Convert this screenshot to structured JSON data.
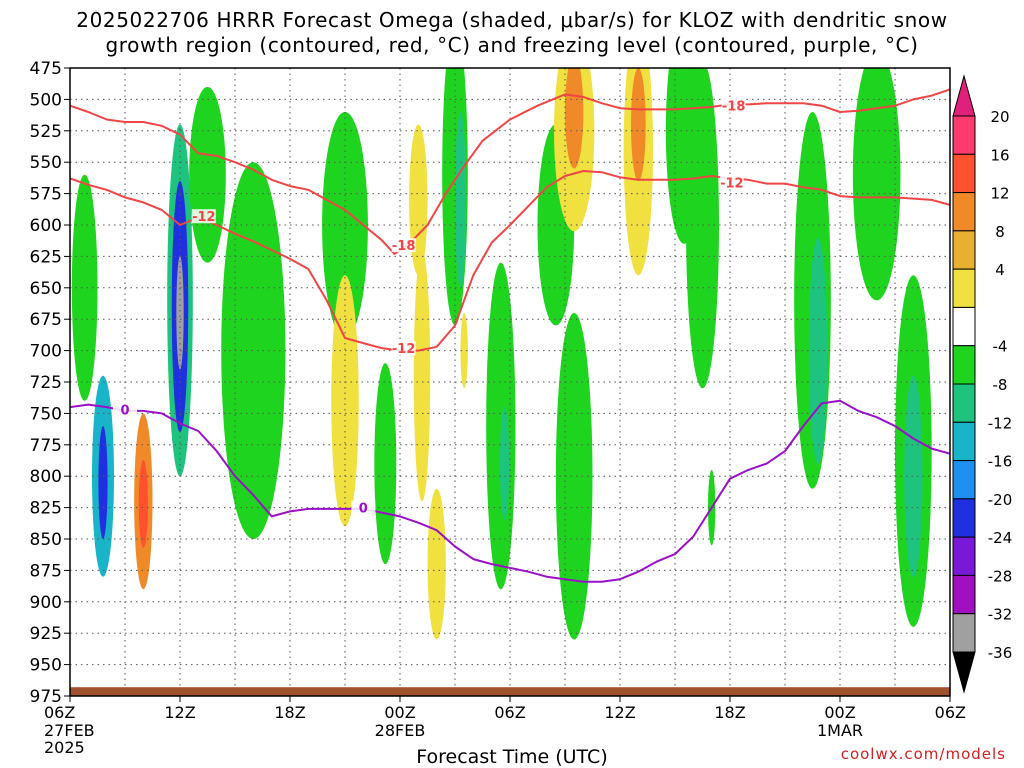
{
  "title_line1": "2025022706 HRRR Forecast Omega (shaded, μbar/s) for KLOZ with dendritic snow",
  "title_line2": "growth region (contoured, red, °C) and freezing level (contoured, purple, °C)",
  "credit": "coolwx.com/models",
  "colors": {
    "dgz_contour": "#f04545",
    "freezing_contour": "#9a10c8",
    "terrain": "#a0522d",
    "grid": "#555555"
  },
  "chart_data": {
    "type": "heatmap",
    "title": "2025022706 HRRR Forecast Omega (shaded, μbar/s) for KLOZ with dendritic snow growth region (contoured, red, °C) and freezing level (contoured, purple, °C)",
    "xlabel": "Forecast Time (UTC)",
    "ylabel": "",
    "grid": true,
    "x_range_hours": [
      0,
      48
    ],
    "y_range_mb": [
      475,
      975
    ],
    "y_ticks": [
      475,
      500,
      525,
      550,
      575,
      600,
      625,
      650,
      675,
      700,
      725,
      750,
      775,
      800,
      825,
      850,
      875,
      900,
      925,
      950,
      975
    ],
    "x_ticks": [
      {
        "hour": 0,
        "label": "06Z",
        "sub": [
          "27FEB",
          "2025"
        ]
      },
      {
        "hour": 6,
        "label": "12Z",
        "sub": []
      },
      {
        "hour": 12,
        "label": "18Z",
        "sub": []
      },
      {
        "hour": 18,
        "label": "00Z",
        "sub": [
          "28FEB"
        ]
      },
      {
        "hour": 24,
        "label": "06Z",
        "sub": []
      },
      {
        "hour": 30,
        "label": "12Z",
        "sub": []
      },
      {
        "hour": 36,
        "label": "18Z",
        "sub": []
      },
      {
        "hour": 42,
        "label": "00Z",
        "sub": [
          "1MAR"
        ]
      },
      {
        "hour": 48,
        "label": "06Z",
        "sub": []
      }
    ],
    "colorbar": {
      "labels": [
        20,
        16,
        12,
        8,
        4,
        -4,
        -8,
        -12,
        -16,
        -20,
        -24,
        -28,
        -32,
        -36
      ],
      "bins": [
        {
          "from": 16,
          "to": 20,
          "color": "#ff3a6e"
        },
        {
          "from": 12,
          "to": 16,
          "color": "#ff5030"
        },
        {
          "from": 8,
          "to": 12,
          "color": "#f08a28"
        },
        {
          "from": 4,
          "to": 8,
          "color": "#e8b030"
        },
        {
          "from": 4,
          "to": 4,
          "color": "#f0e040"
        },
        {
          "from": -4,
          "to": 4,
          "color": "#ffffff"
        },
        {
          "from": -8,
          "to": -4,
          "color": "#1ed41e"
        },
        {
          "from": -12,
          "to": -8,
          "color": "#1ec47e"
        },
        {
          "from": -16,
          "to": -12,
          "color": "#1ab4c8"
        },
        {
          "from": -20,
          "to": -16,
          "color": "#2090f0"
        },
        {
          "from": -24,
          "to": -20,
          "color": "#2030e0"
        },
        {
          "from": -28,
          "to": -24,
          "color": "#7a18d8"
        },
        {
          "from": -32,
          "to": -28,
          "color": "#a010c0"
        },
        {
          "from": -36,
          "to": -32,
          "color": "#a0a0a0"
        }
      ],
      "top_arrow_color": "#e0207a",
      "bottom_arrow_color": "#000000"
    },
    "series": [
      {
        "name": "-18",
        "kind": "dgz",
        "x": [
          0,
          1,
          2,
          3,
          4,
          5,
          6,
          7,
          8,
          9,
          10,
          11,
          12,
          13,
          14,
          15,
          16,
          17,
          17.7,
          18.5,
          19.5,
          20.5,
          21.5,
          22.5,
          24,
          25.5,
          27,
          28,
          29,
          30,
          31,
          32,
          33,
          34,
          35,
          36,
          37,
          38,
          39,
          40,
          41,
          42,
          43,
          44,
          45,
          46,
          47,
          48
        ],
        "y": [
          505,
          510,
          516,
          518,
          518,
          521,
          528,
          543,
          545,
          550,
          556,
          564,
          569,
          572,
          580,
          588,
          600,
          612,
          623,
          615,
          600,
          575,
          553,
          533,
          516,
          505,
          496,
          498,
          503,
          507,
          508,
          508,
          508,
          507,
          506,
          504,
          504,
          503,
          503,
          503,
          505,
          510,
          509,
          507,
          505,
          500,
          497,
          492
        ]
      },
      {
        "name": "-12",
        "kind": "dgz",
        "x": [
          0,
          1,
          2,
          3,
          4,
          5,
          6,
          7,
          8,
          9,
          10,
          11,
          12,
          13,
          14,
          15,
          16,
          17,
          18,
          19,
          20,
          21,
          22,
          23,
          24,
          25,
          26,
          27,
          28,
          29,
          30,
          31,
          32,
          33,
          34,
          35,
          36,
          37,
          38,
          39,
          40,
          41,
          42,
          43,
          44,
          45,
          46,
          47,
          48
        ],
        "y": [
          563,
          568,
          572,
          578,
          582,
          588,
          600,
          594,
          600,
          607,
          613,
          620,
          627,
          635,
          660,
          690,
          694,
          698,
          700,
          700,
          697,
          680,
          640,
          614,
          600,
          585,
          570,
          561,
          557,
          558,
          562,
          564,
          564,
          564,
          563,
          561,
          563,
          564,
          567,
          567,
          570,
          572,
          577,
          578,
          578,
          578,
          579,
          580,
          584
        ]
      },
      {
        "name": "0",
        "kind": "freezing",
        "x": [
          0,
          1,
          2,
          3,
          4,
          5,
          6,
          7,
          8,
          9,
          10,
          11,
          12,
          13,
          14,
          15,
          16,
          17,
          18,
          19,
          20,
          21,
          22,
          23,
          24,
          25,
          26,
          27,
          28,
          29,
          30,
          31,
          32,
          33,
          34,
          35,
          36,
          37,
          38,
          39,
          40,
          41,
          42,
          43,
          44,
          45,
          46,
          47,
          48
        ],
        "y": [
          745,
          743,
          745,
          748,
          748,
          750,
          758,
          764,
          780,
          800,
          815,
          832,
          828,
          826,
          826,
          826,
          826,
          829,
          832,
          837,
          843,
          856,
          866,
          870,
          873,
          876,
          880,
          882,
          884,
          884,
          882,
          876,
          868,
          862,
          848,
          825,
          802,
          795,
          790,
          780,
          760,
          742,
          740,
          748,
          753,
          760,
          770,
          778,
          782
        ]
      }
    ],
    "contour_labels": [
      {
        "text": "-18",
        "hour": 36.2,
        "mb": 505,
        "kind": "dgz"
      },
      {
        "text": "-18",
        "hour": 18.2,
        "mb": 616,
        "kind": "dgz"
      },
      {
        "text": "-12",
        "hour": 36.1,
        "mb": 566,
        "kind": "dgz"
      },
      {
        "text": "-12",
        "hour": 7.3,
        "mb": 593,
        "kind": "dgz"
      },
      {
        "text": "-12",
        "hour": 18.2,
        "mb": 698,
        "kind": "dgz"
      },
      {
        "text": "0",
        "hour": 3.0,
        "mb": 747,
        "kind": "freezing"
      },
      {
        "text": "0",
        "hour": 16.0,
        "mb": 825,
        "kind": "freezing"
      }
    ],
    "omega_features": [
      {
        "hour": 0.8,
        "mb": 650,
        "w": 1.4,
        "h": 180,
        "value": -8
      },
      {
        "hour": 1.8,
        "mb": 800,
        "w": 1.2,
        "h": 160,
        "value": -16
      },
      {
        "hour": 1.8,
        "mb": 805,
        "w": 0.5,
        "h": 90,
        "value": -24
      },
      {
        "hour": 4.0,
        "mb": 820,
        "w": 1.0,
        "h": 140,
        "value": 8
      },
      {
        "hour": 4.0,
        "mb": 822,
        "w": 0.5,
        "h": 70,
        "value": 12
      },
      {
        "hour": 6.0,
        "mb": 660,
        "w": 1.4,
        "h": 280,
        "value": -12
      },
      {
        "hour": 6.0,
        "mb": 665,
        "w": 0.9,
        "h": 200,
        "value": -24
      },
      {
        "hour": 6.0,
        "mb": 670,
        "w": 0.4,
        "h": 90,
        "value": -36
      },
      {
        "hour": 7.5,
        "mb": 560,
        "w": 2.0,
        "h": 140,
        "value": -8
      },
      {
        "hour": 10.0,
        "mb": 700,
        "w": 3.5,
        "h": 300,
        "value": -8
      },
      {
        "hour": 15.0,
        "mb": 600,
        "w": 2.5,
        "h": 180,
        "value": -8
      },
      {
        "hour": 15.0,
        "mb": 740,
        "w": 1.5,
        "h": 200,
        "value": 4
      },
      {
        "hour": 17.2,
        "mb": 790,
        "w": 1.2,
        "h": 160,
        "value": -8
      },
      {
        "hour": 19.0,
        "mb": 580,
        "w": 1.0,
        "h": 120,
        "value": 4
      },
      {
        "hour": 19.2,
        "mb": 720,
        "w": 0.9,
        "h": 200,
        "value": 4
      },
      {
        "hour": 20.0,
        "mb": 870,
        "w": 1.0,
        "h": 120,
        "value": 4
      },
      {
        "hour": 21.0,
        "mb": 560,
        "w": 1.4,
        "h": 240,
        "value": -8
      },
      {
        "hour": 21.3,
        "mb": 580,
        "w": 0.6,
        "h": 140,
        "value": -12
      },
      {
        "hour": 21.5,
        "mb": 700,
        "w": 0.4,
        "h": 60,
        "value": 4
      },
      {
        "hour": 23.5,
        "mb": 760,
        "w": 1.6,
        "h": 260,
        "value": -8
      },
      {
        "hour": 23.7,
        "mb": 790,
        "w": 0.5,
        "h": 90,
        "value": -12
      },
      {
        "hour": 26.5,
        "mb": 600,
        "w": 2.0,
        "h": 160,
        "value": -8
      },
      {
        "hour": 27.5,
        "mb": 800,
        "w": 2.0,
        "h": 260,
        "value": -8
      },
      {
        "hour": 27.5,
        "mb": 525,
        "w": 2.2,
        "h": 160,
        "value": 4
      },
      {
        "hour": 27.5,
        "mb": 510,
        "w": 1.0,
        "h": 90,
        "value": 8
      },
      {
        "hour": 31.0,
        "mb": 540,
        "w": 1.6,
        "h": 200,
        "value": 4
      },
      {
        "hour": 31.0,
        "mb": 520,
        "w": 0.8,
        "h": 90,
        "value": 8
      },
      {
        "hour": 33.5,
        "mb": 525,
        "w": 2.0,
        "h": 180,
        "value": -8
      },
      {
        "hour": 34.5,
        "mb": 600,
        "w": 1.8,
        "h": 260,
        "value": -8
      },
      {
        "hour": 35.0,
        "mb": 825,
        "w": 0.4,
        "h": 60,
        "value": -8
      },
      {
        "hour": 40.5,
        "mb": 660,
        "w": 2.0,
        "h": 300,
        "value": -8
      },
      {
        "hour": 40.8,
        "mb": 700,
        "w": 1.0,
        "h": 180,
        "value": -12
      },
      {
        "hour": 44.0,
        "mb": 560,
        "w": 2.6,
        "h": 200,
        "value": -8
      },
      {
        "hour": 46.0,
        "mb": 780,
        "w": 2.0,
        "h": 280,
        "value": -8
      },
      {
        "hour": 46.0,
        "mb": 800,
        "w": 1.0,
        "h": 160,
        "value": -12
      }
    ]
  }
}
